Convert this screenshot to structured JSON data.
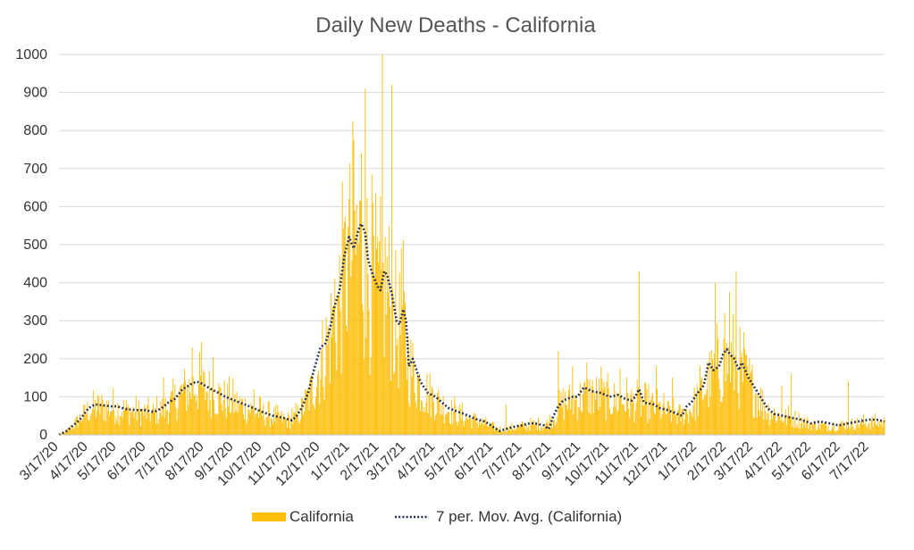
{
  "chart_data": {
    "type": "bar",
    "title": "Daily New Deaths - California",
    "xlabel": "",
    "ylabel": "",
    "ylim": [
      0,
      1000
    ],
    "yticks": [
      0,
      100,
      200,
      300,
      400,
      500,
      600,
      700,
      800,
      900,
      1000
    ],
    "grid": true,
    "legend_position": "bottom",
    "xlim_days": [
      0,
      868
    ],
    "x_ticks": [
      {
        "label": "3/17/20",
        "day": 0
      },
      {
        "label": "4/17/20",
        "day": 31
      },
      {
        "label": "5/17/20",
        "day": 61
      },
      {
        "label": "6/17/20",
        "day": 92
      },
      {
        "label": "7/17/20",
        "day": 122
      },
      {
        "label": "8/17/20",
        "day": 153
      },
      {
        "label": "9/17/20",
        "day": 184
      },
      {
        "label": "10/17/20",
        "day": 214
      },
      {
        "label": "11/17/20",
        "day": 245
      },
      {
        "label": "12/17/20",
        "day": 275
      },
      {
        "label": "1/17/21",
        "day": 306
      },
      {
        "label": "2/17/21",
        "day": 337
      },
      {
        "label": "3/17/21",
        "day": 365
      },
      {
        "label": "4/17/21",
        "day": 396
      },
      {
        "label": "5/17/21",
        "day": 426
      },
      {
        "label": "6/17/21",
        "day": 457
      },
      {
        "label": "7/17/21",
        "day": 487
      },
      {
        "label": "8/17/21",
        "day": 518
      },
      {
        "label": "9/17/21",
        "day": 549
      },
      {
        "label": "10/17/21",
        "day": 579
      },
      {
        "label": "11/17/21",
        "day": 610
      },
      {
        "label": "12/17/21",
        "day": 640
      },
      {
        "label": "1/17/22",
        "day": 671
      },
      {
        "label": "2/17/22",
        "day": 702
      },
      {
        "label": "3/17/22",
        "day": 730
      },
      {
        "label": "4/17/22",
        "day": 761
      },
      {
        "label": "5/17/22",
        "day": 791
      },
      {
        "label": "6/17/22",
        "day": 822
      },
      {
        "label": "7/17/22",
        "day": 852
      }
    ],
    "series": [
      {
        "name": "California",
        "kind": "bar",
        "color": "#FDBF0E",
        "trend_anchors": [
          [
            0,
            0
          ],
          [
            8,
            10
          ],
          [
            20,
            40
          ],
          [
            31,
            70
          ],
          [
            45,
            80
          ],
          [
            61,
            75
          ],
          [
            80,
            65
          ],
          [
            100,
            60
          ],
          [
            115,
            80
          ],
          [
            130,
            120
          ],
          [
            145,
            140
          ],
          [
            160,
            120
          ],
          [
            175,
            100
          ],
          [
            195,
            80
          ],
          [
            214,
            60
          ],
          [
            235,
            45
          ],
          [
            245,
            40
          ],
          [
            255,
            70
          ],
          [
            265,
            120
          ],
          [
            275,
            200
          ],
          [
            285,
            280
          ],
          [
            295,
            380
          ],
          [
            305,
            500
          ],
          [
            315,
            540
          ],
          [
            325,
            460
          ],
          [
            335,
            380
          ],
          [
            345,
            420
          ],
          [
            355,
            290
          ],
          [
            362,
            320
          ],
          [
            368,
            200
          ],
          [
            380,
            140
          ],
          [
            396,
            100
          ],
          [
            410,
            70
          ],
          [
            426,
            50
          ],
          [
            440,
            40
          ],
          [
            457,
            20
          ],
          [
            470,
            15
          ],
          [
            487,
            25
          ],
          [
            500,
            30
          ],
          [
            510,
            25
          ],
          [
            520,
            50
          ],
          [
            530,
            90
          ],
          [
            545,
            100
          ],
          [
            560,
            115
          ],
          [
            579,
            100
          ],
          [
            595,
            95
          ],
          [
            610,
            90
          ],
          [
            625,
            80
          ],
          [
            640,
            65
          ],
          [
            655,
            55
          ],
          [
            665,
            75
          ],
          [
            678,
            130
          ],
          [
            688,
            170
          ],
          [
            698,
            200
          ],
          [
            705,
            210
          ],
          [
            715,
            180
          ],
          [
            725,
            150
          ],
          [
            735,
            110
          ],
          [
            745,
            70
          ],
          [
            761,
            50
          ],
          [
            775,
            45
          ],
          [
            791,
            30
          ],
          [
            810,
            25
          ],
          [
            830,
            30
          ],
          [
            852,
            35
          ],
          [
            868,
            35
          ]
        ],
        "spikes": [
          [
            110,
            150
          ],
          [
            140,
            230
          ],
          [
            150,
            245
          ],
          [
            162,
            205
          ],
          [
            205,
            120
          ],
          [
            245,
            70
          ],
          [
            290,
            410
          ],
          [
            300,
            560
          ],
          [
            305,
            620
          ],
          [
            310,
            775
          ],
          [
            318,
            740
          ],
          [
            322,
            910
          ],
          [
            330,
            610
          ],
          [
            335,
            520
          ],
          [
            340,
            1000
          ],
          [
            350,
            920
          ],
          [
            360,
            490
          ],
          [
            470,
            80
          ],
          [
            525,
            220
          ],
          [
            540,
            180
          ],
          [
            555,
            190
          ],
          [
            570,
            180
          ],
          [
            590,
            175
          ],
          [
            610,
            430
          ],
          [
            628,
            180
          ],
          [
            645,
            150
          ],
          [
            690,
            400
          ],
          [
            700,
            320
          ],
          [
            705,
            375
          ],
          [
            712,
            430
          ],
          [
            720,
            270
          ],
          [
            760,
            130
          ],
          [
            770,
            160
          ],
          [
            830,
            140
          ]
        ]
      },
      {
        "name": "7 per. Mov. Avg. (California)",
        "kind": "line",
        "color": "#1F2D4E",
        "values": [
          [
            0,
            0
          ],
          [
            8,
            10
          ],
          [
            15,
            25
          ],
          [
            22,
            40
          ],
          [
            31,
            70
          ],
          [
            38,
            80
          ],
          [
            45,
            78
          ],
          [
            55,
            75
          ],
          [
            61,
            75
          ],
          [
            70,
            68
          ],
          [
            80,
            65
          ],
          [
            90,
            65
          ],
          [
            100,
            60
          ],
          [
            108,
            70
          ],
          [
            115,
            85
          ],
          [
            122,
            95
          ],
          [
            130,
            120
          ],
          [
            140,
            135
          ],
          [
            145,
            140
          ],
          [
            150,
            135
          ],
          [
            160,
            120
          ],
          [
            168,
            110
          ],
          [
            175,
            100
          ],
          [
            185,
            90
          ],
          [
            195,
            80
          ],
          [
            205,
            70
          ],
          [
            214,
            60
          ],
          [
            225,
            50
          ],
          [
            235,
            45
          ],
          [
            245,
            38
          ],
          [
            250,
            50
          ],
          [
            255,
            70
          ],
          [
            262,
            110
          ],
          [
            268,
            170
          ],
          [
            275,
            230
          ],
          [
            280,
            240
          ],
          [
            285,
            280
          ],
          [
            290,
            340
          ],
          [
            295,
            380
          ],
          [
            300,
            470
          ],
          [
            305,
            520
          ],
          [
            310,
            490
          ],
          [
            315,
            540
          ],
          [
            318,
            555
          ],
          [
            322,
            530
          ],
          [
            325,
            460
          ],
          [
            330,
            420
          ],
          [
            335,
            390
          ],
          [
            338,
            380
          ],
          [
            342,
            430
          ],
          [
            345,
            420
          ],
          [
            350,
            370
          ],
          [
            355,
            300
          ],
          [
            358,
            290
          ],
          [
            362,
            330
          ],
          [
            365,
            300
          ],
          [
            368,
            180
          ],
          [
            372,
            200
          ],
          [
            380,
            140
          ],
          [
            388,
            110
          ],
          [
            396,
            100
          ],
          [
            405,
            80
          ],
          [
            410,
            70
          ],
          [
            420,
            60
          ],
          [
            426,
            55
          ],
          [
            435,
            45
          ],
          [
            440,
            40
          ],
          [
            448,
            35
          ],
          [
            457,
            20
          ],
          [
            463,
            10
          ],
          [
            470,
            15
          ],
          [
            480,
            22
          ],
          [
            487,
            25
          ],
          [
            495,
            30
          ],
          [
            500,
            30
          ],
          [
            510,
            25
          ],
          [
            515,
            15
          ],
          [
            520,
            50
          ],
          [
            525,
            75
          ],
          [
            530,
            90
          ],
          [
            540,
            100
          ],
          [
            545,
            100
          ],
          [
            552,
            125
          ],
          [
            560,
            115
          ],
          [
            570,
            110
          ],
          [
            579,
            100
          ],
          [
            588,
            105
          ],
          [
            595,
            95
          ],
          [
            602,
            90
          ],
          [
            606,
            100
          ],
          [
            610,
            120
          ],
          [
            615,
            85
          ],
          [
            625,
            80
          ],
          [
            632,
            70
          ],
          [
            640,
            65
          ],
          [
            650,
            55
          ],
          [
            655,
            50
          ],
          [
            660,
            75
          ],
          [
            665,
            85
          ],
          [
            670,
            105
          ],
          [
            678,
            130
          ],
          [
            683,
            190
          ],
          [
            688,
            170
          ],
          [
            694,
            180
          ],
          [
            698,
            210
          ],
          [
            702,
            225
          ],
          [
            706,
            210
          ],
          [
            710,
            200
          ],
          [
            715,
            170
          ],
          [
            718,
            190
          ],
          [
            725,
            150
          ],
          [
            730,
            130
          ],
          [
            735,
            110
          ],
          [
            740,
            90
          ],
          [
            745,
            70
          ],
          [
            752,
            55
          ],
          [
            761,
            50
          ],
          [
            770,
            45
          ],
          [
            780,
            40
          ],
          [
            791,
            30
          ],
          [
            800,
            35
          ],
          [
            810,
            30
          ],
          [
            820,
            25
          ],
          [
            830,
            30
          ],
          [
            840,
            35
          ],
          [
            852,
            40
          ],
          [
            860,
            40
          ],
          [
            868,
            35
          ]
        ]
      }
    ]
  }
}
